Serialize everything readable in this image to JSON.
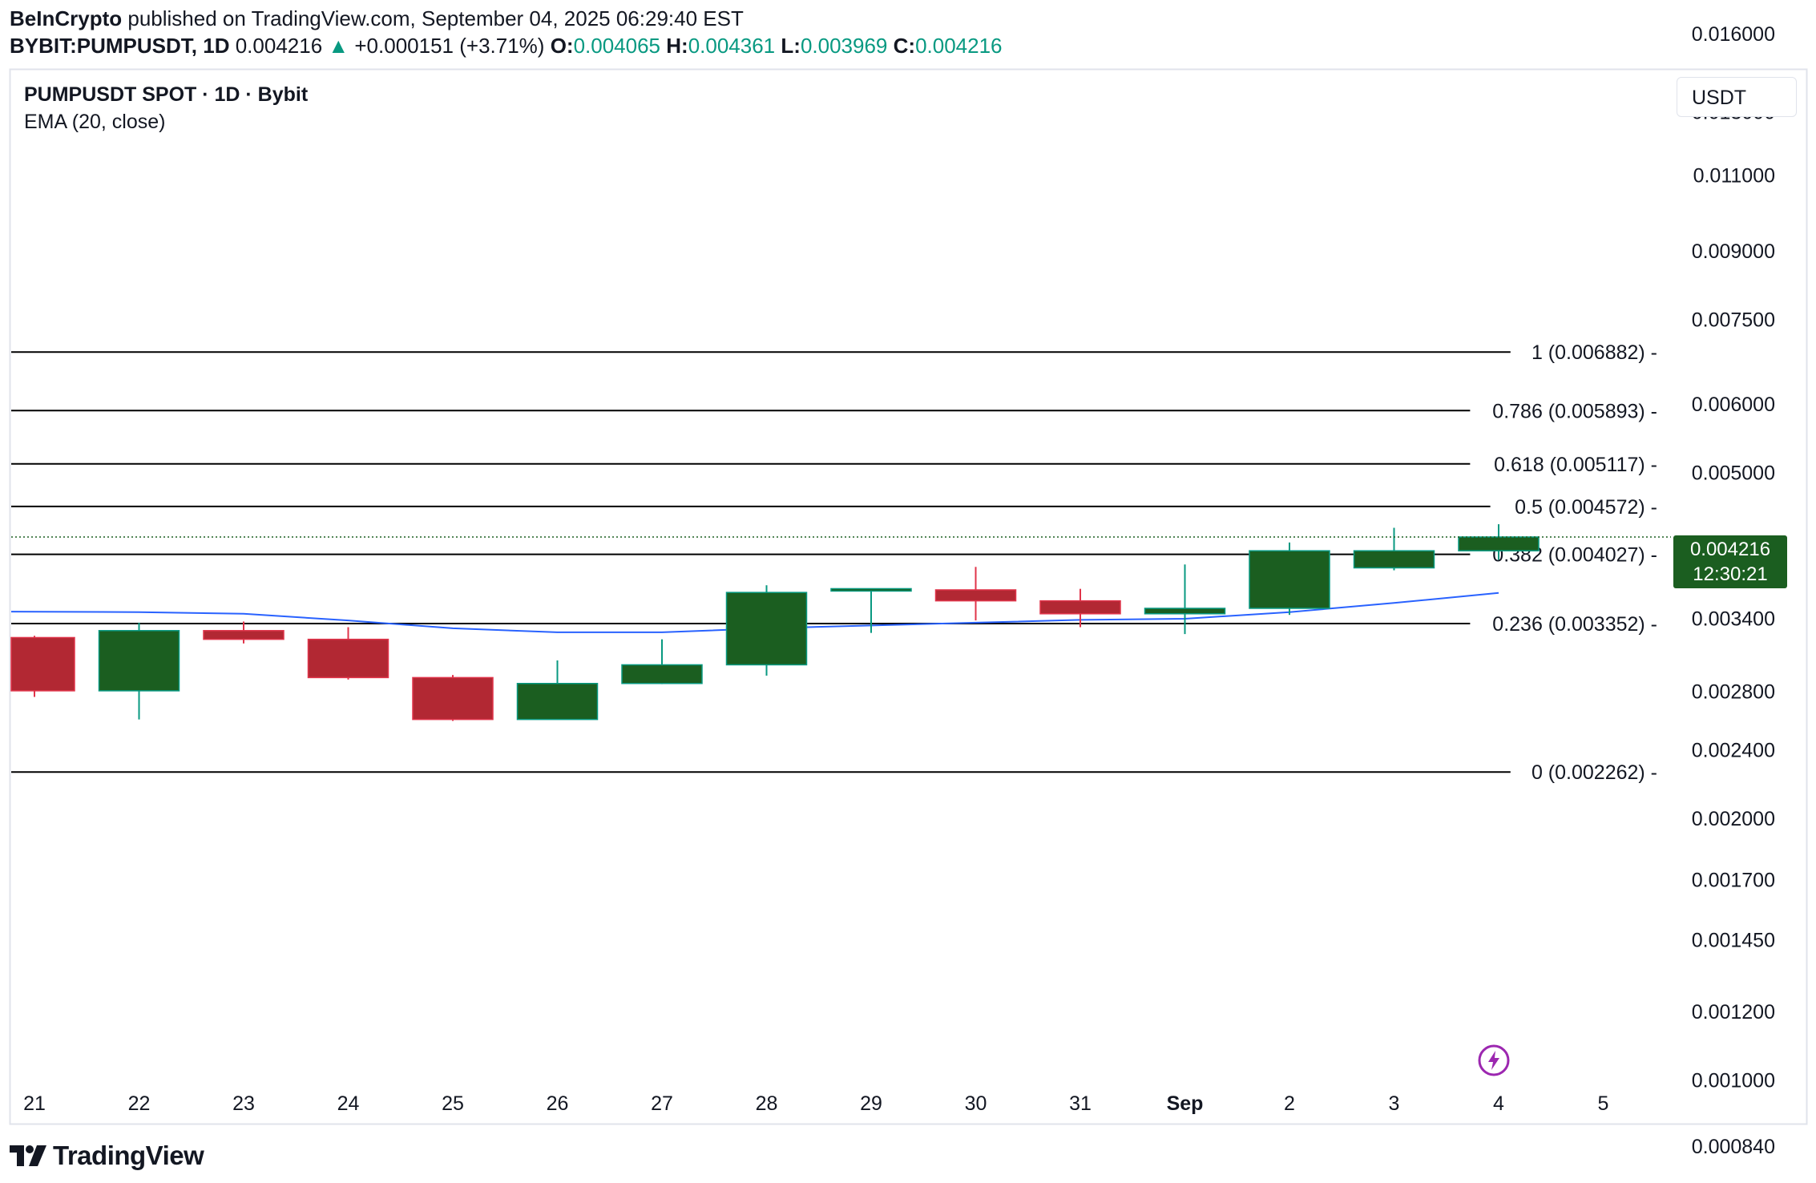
{
  "header": {
    "publisher": "BeInCrypto",
    "published_text": "published on TradingView.com, September 04, 2025 06:29:40 EST",
    "symbol": "BYBIT:PUMPUSDT, 1D",
    "last": "0.004216",
    "change_arrow": "▲",
    "change": "+0.000151 (+3.71%)",
    "o_label": "O:",
    "o_value": "0.004065",
    "h_label": "H:",
    "h_value": "0.004361",
    "l_label": "L:",
    "l_value": "0.003969",
    "c_label": "C:",
    "c_value": "0.004216"
  },
  "legend": {
    "title": "PUMPUSDT SPOT · 1D · Bybit",
    "indicator": "EMA (20, close)"
  },
  "currency_button": "USDT",
  "price_tag": {
    "value": "0.004216",
    "countdown": "12:30:21"
  },
  "branding": {
    "logo_text": "TradingView"
  },
  "colors": {
    "up": "#1b5e20",
    "up_border": "#089981",
    "down": "#b22833",
    "down_border": "#e0344a",
    "ema": "#2962ff",
    "fib": "#000000",
    "text_green": "#089981"
  },
  "chart_data": {
    "type": "candlestick",
    "y_scale": "log",
    "y_tick_labels": [
      "0.016000",
      "0.013000",
      "0.011000",
      "0.009000",
      "0.007500",
      "0.006000",
      "0.005000",
      "0.003400",
      "0.002800",
      "0.002400",
      "0.002000",
      "0.001700",
      "0.001450",
      "0.001200",
      "0.001000",
      "0.000840"
    ],
    "x_tick_labels": [
      "21",
      "22",
      "23",
      "24",
      "25",
      "26",
      "27",
      "28",
      "29",
      "30",
      "31",
      "Sep",
      "2",
      "3",
      "4",
      "5"
    ],
    "candles": [
      {
        "x": "21",
        "open": 0.00323,
        "high": 0.003245,
        "low": 0.00276,
        "close": 0.002805
      },
      {
        "x": "22",
        "open": 0.002805,
        "high": 0.00336,
        "low": 0.0026,
        "close": 0.00329
      },
      {
        "x": "23",
        "open": 0.00329,
        "high": 0.00337,
        "low": 0.00318,
        "close": 0.003215
      },
      {
        "x": "24",
        "open": 0.003215,
        "high": 0.00332,
        "low": 0.00289,
        "close": 0.002905
      },
      {
        "x": "25",
        "open": 0.002905,
        "high": 0.002925,
        "low": 0.00259,
        "close": 0.0026
      },
      {
        "x": "26",
        "open": 0.0026,
        "high": 0.00304,
        "low": 0.0026,
        "close": 0.00286
      },
      {
        "x": "27",
        "open": 0.00286,
        "high": 0.003215,
        "low": 0.002855,
        "close": 0.003005
      },
      {
        "x": "28",
        "open": 0.003005,
        "high": 0.00371,
        "low": 0.00292,
        "close": 0.00364
      },
      {
        "x": "29",
        "open": 0.00365,
        "high": 0.00366,
        "low": 0.00327,
        "close": 0.003665
      },
      {
        "x": "30",
        "open": 0.003665,
        "high": 0.003895,
        "low": 0.00338,
        "close": 0.00356
      },
      {
        "x": "31",
        "open": 0.00356,
        "high": 0.003675,
        "low": 0.00332,
        "close": 0.00344
      },
      {
        "x": "Sep",
        "open": 0.00344,
        "high": 0.00392,
        "low": 0.00326,
        "close": 0.00349
      },
      {
        "x": "2",
        "open": 0.00349,
        "high": 0.004155,
        "low": 0.00343,
        "close": 0.004065
      },
      {
        "x": "3",
        "open": 0.003885,
        "high": 0.00432,
        "low": 0.00386,
        "close": 0.004065
      },
      {
        "x": "4",
        "open": 0.004065,
        "high": 0.004361,
        "low": 0.003969,
        "close": 0.004216
      }
    ],
    "ema20": [
      0.00346,
      0.003455,
      0.00344,
      0.00338,
      0.00331,
      0.003275,
      0.003275,
      0.00331,
      0.003335,
      0.00336,
      0.003385,
      0.003395,
      0.003455,
      0.00354,
      0.003635
    ],
    "fib_levels": [
      {
        "label": "1 (0.006882)",
        "value": 0.006882
      },
      {
        "label": "0.786 (0.005893)",
        "value": 0.005893
      },
      {
        "label": "0.618 (0.005117)",
        "value": 0.005117
      },
      {
        "label": "0.5 (0.004572)",
        "value": 0.004572
      },
      {
        "label": "0.382 (0.004027)",
        "value": 0.004027
      },
      {
        "label": "0.236 (0.003352)",
        "value": 0.003352
      },
      {
        "label": "0 (0.002262)",
        "value": 0.002262
      }
    ],
    "last_price": 0.004216
  }
}
